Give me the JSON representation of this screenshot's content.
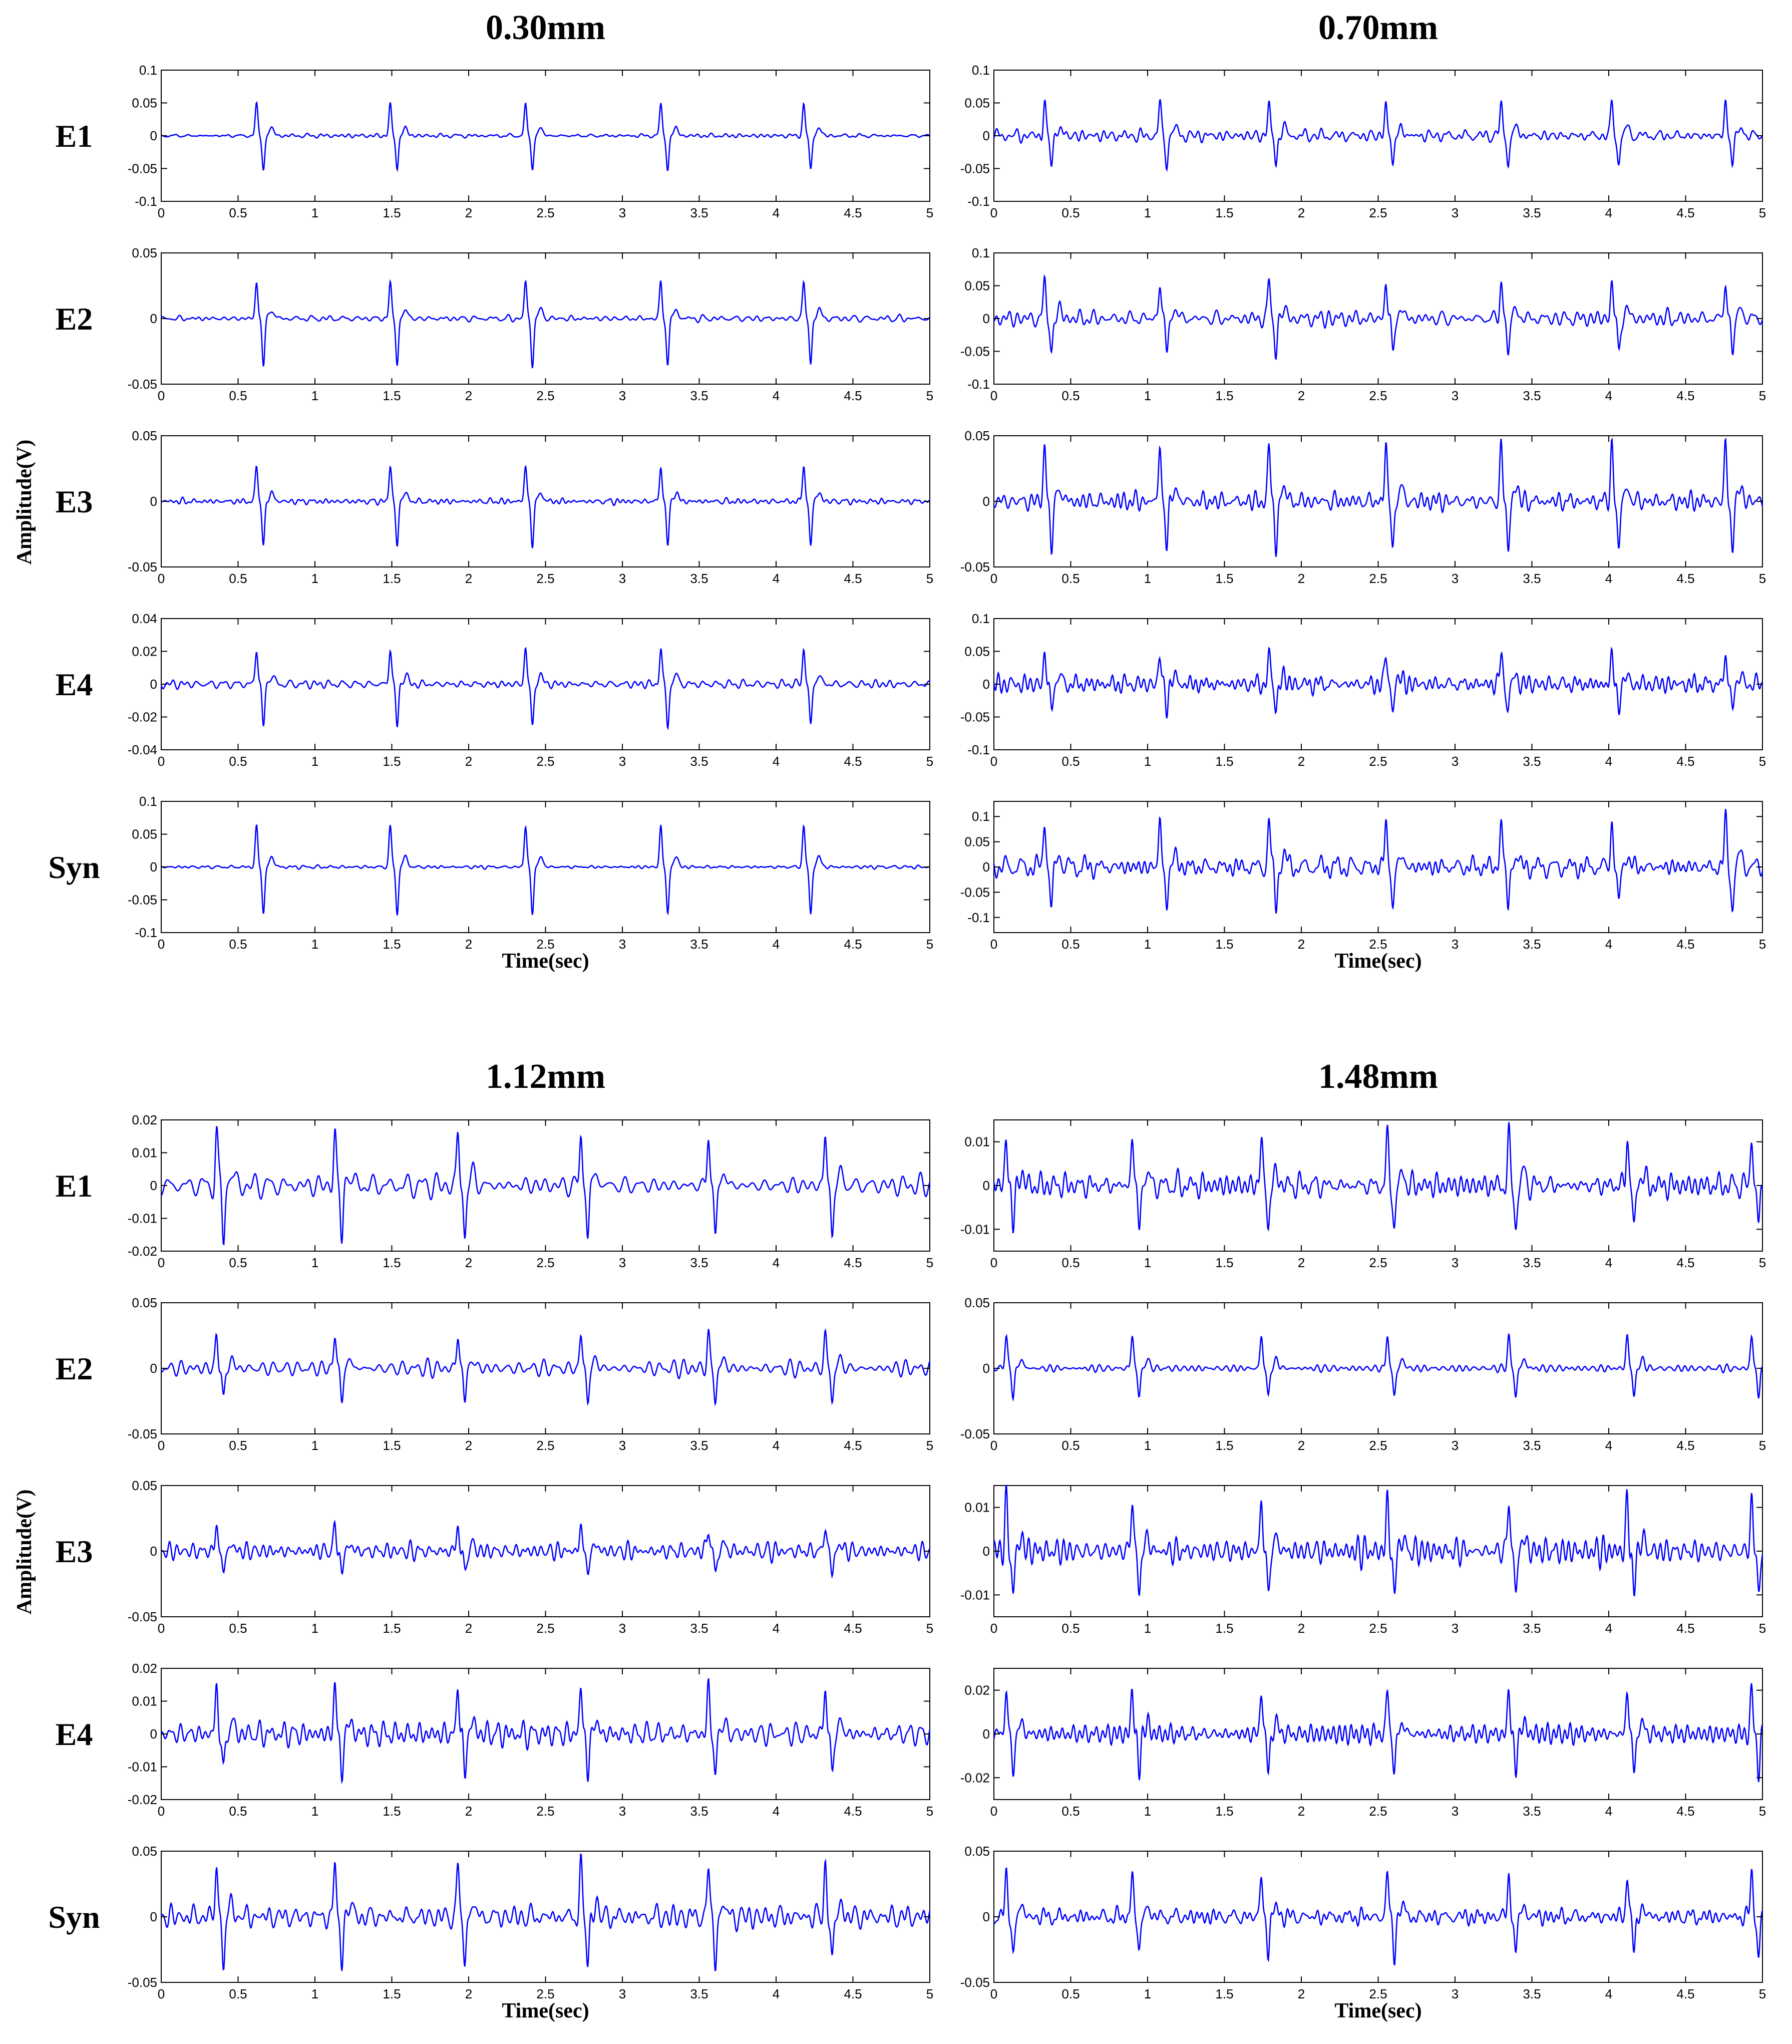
{
  "figure": {
    "y_axis_label": "Amplitude(V)",
    "x_axis_label": "Time(sec)",
    "row_labels": [
      "E1",
      "E2",
      "E3",
      "E4",
      "Syn"
    ],
    "trace_color": "#0000ff",
    "x_ticks": [
      "0",
      "0.5",
      "1",
      "1.5",
      "2",
      "2.5",
      "3",
      "3.5",
      "4",
      "4.5",
      "5"
    ]
  },
  "chart_data": [
    {
      "type": "line",
      "title": "0.30mm",
      "xlabel": "Time(sec)",
      "ylabel": "Amplitude(V)",
      "xlim": [
        0,
        5
      ],
      "grid": false,
      "rows": [
        {
          "name": "E1",
          "ylim": [
            -0.1,
            0.1
          ],
          "yticks": [
            "-0.1",
            "-0.05",
            "0",
            "0.05",
            "0.1"
          ],
          "peak": 0.048,
          "trough": -0.052,
          "spike_times": [
            0.62,
            1.49,
            2.37,
            3.25,
            4.18
          ],
          "noise": 0.003
        },
        {
          "name": "E2",
          "ylim": [
            -0.05,
            0.05
          ],
          "yticks": [
            "-0.05",
            "0",
            "0.05"
          ],
          "peak": 0.028,
          "trough": -0.036,
          "spike_times": [
            0.62,
            1.49,
            2.37,
            3.25,
            4.18
          ],
          "noise": 0.0025
        },
        {
          "name": "E3",
          "ylim": [
            -0.05,
            0.05
          ],
          "yticks": [
            "-0.05",
            "0",
            "0.05"
          ],
          "peak": 0.027,
          "trough": -0.034,
          "spike_times": [
            0.62,
            1.49,
            2.37,
            3.25,
            4.18
          ],
          "noise": 0.0025
        },
        {
          "name": "E4",
          "ylim": [
            -0.04,
            0.04
          ],
          "yticks": [
            "-0.04",
            "-0.02",
            "0",
            "0.02",
            "0.04"
          ],
          "peak": 0.022,
          "trough": -0.026,
          "spike_times": [
            0.62,
            1.49,
            2.37,
            3.25,
            4.18
          ],
          "noise": 0.002
        },
        {
          "name": "Syn",
          "ylim": [
            -0.1,
            0.1
          ],
          "yticks": [
            "-0.1",
            "-0.05",
            "0",
            "0.05",
            "0.1"
          ],
          "peak": 0.063,
          "trough": -0.072,
          "spike_times": [
            0.62,
            1.49,
            2.37,
            3.25,
            4.18
          ],
          "noise": 0.003
        }
      ]
    },
    {
      "type": "line",
      "title": "0.70mm",
      "xlabel": "Time(sec)",
      "ylabel": "",
      "xlim": [
        0,
        5
      ],
      "grid": false,
      "rows": [
        {
          "name": "E1",
          "ylim": [
            -0.1,
            0.1
          ],
          "yticks": [
            "-0.1",
            "-0.05",
            "0",
            "0.05",
            "0.1"
          ],
          "peak": 0.05,
          "trough": -0.045,
          "spike_times": [
            0.33,
            1.08,
            1.79,
            2.55,
            3.3,
            4.02,
            4.76
          ],
          "noise": 0.01
        },
        {
          "name": "E2",
          "ylim": [
            -0.1,
            0.1
          ],
          "yticks": [
            "-0.1",
            "-0.05",
            "0",
            "0.05",
            "0.1"
          ],
          "peak": 0.058,
          "trough": -0.055,
          "spike_times": [
            0.33,
            1.08,
            1.79,
            2.55,
            3.3,
            4.02,
            4.76
          ],
          "noise": 0.012
        },
        {
          "name": "E3",
          "ylim": [
            -0.05,
            0.05
          ],
          "yticks": [
            "-0.05",
            "0",
            "0.05"
          ],
          "peak": 0.043,
          "trough": -0.038,
          "spike_times": [
            0.33,
            1.08,
            1.79,
            2.55,
            3.3,
            4.02,
            4.76
          ],
          "noise": 0.01
        },
        {
          "name": "E4",
          "ylim": [
            -0.1,
            0.1
          ],
          "yticks": [
            "-0.1",
            "-0.05",
            "0",
            "0.05",
            "0.1"
          ],
          "peak": 0.045,
          "trough": -0.038,
          "spike_times": [
            0.33,
            1.08,
            1.79,
            2.55,
            3.3,
            4.02,
            4.76
          ],
          "noise": 0.013
        },
        {
          "name": "Syn",
          "ylim": [
            -0.13,
            0.13
          ],
          "yticks": [
            "-0.1",
            "-0.05",
            "0",
            "0.05",
            "0.1"
          ],
          "peak": 0.095,
          "trough": -0.085,
          "spike_times": [
            0.33,
            1.08,
            1.79,
            2.55,
            3.3,
            4.02,
            4.76
          ],
          "noise": 0.022
        }
      ]
    },
    {
      "type": "line",
      "title": "1.12mm",
      "xlabel": "Time(sec)",
      "ylabel": "Amplitude(V)",
      "xlim": [
        0,
        5
      ],
      "grid": false,
      "rows": [
        {
          "name": "E1",
          "ylim": [
            -0.02,
            0.02
          ],
          "yticks": [
            "-0.02",
            "-0.01",
            "0",
            "0.01",
            "0.02"
          ],
          "peak": 0.016,
          "trough": -0.016,
          "spike_times": [
            0.36,
            1.13,
            1.93,
            2.73,
            3.56,
            4.32
          ],
          "noise": 0.004
        },
        {
          "name": "E2",
          "ylim": [
            -0.05,
            0.05
          ],
          "yticks": [
            "-0.05",
            "0",
            "0.05"
          ],
          "peak": 0.026,
          "trough": -0.025,
          "spike_times": [
            0.36,
            1.13,
            1.93,
            2.73,
            3.56,
            4.32
          ],
          "noise": 0.006
        },
        {
          "name": "E3",
          "ylim": [
            -0.05,
            0.05
          ],
          "yticks": [
            "-0.05",
            "0",
            "0.05"
          ],
          "peak": 0.02,
          "trough": -0.018,
          "spike_times": [
            0.36,
            1.13,
            1.93,
            2.73,
            3.56,
            4.32
          ],
          "noise": 0.007
        },
        {
          "name": "E4",
          "ylim": [
            -0.02,
            0.02
          ],
          "yticks": [
            "-0.02",
            "-0.01",
            "0",
            "0.01",
            "0.02"
          ],
          "peak": 0.015,
          "trough": -0.013,
          "spike_times": [
            0.36,
            1.13,
            1.93,
            2.73,
            3.56,
            4.32
          ],
          "noise": 0.004
        },
        {
          "name": "Syn",
          "ylim": [
            -0.05,
            0.05
          ],
          "yticks": [
            "-0.05",
            "0",
            "0.05"
          ],
          "peak": 0.04,
          "trough": -0.038,
          "spike_times": [
            0.36,
            1.13,
            1.93,
            2.73,
            3.56,
            4.32
          ],
          "noise": 0.009
        }
      ]
    },
    {
      "type": "line",
      "title": "1.48mm",
      "xlabel": "Time(sec)",
      "ylabel": "",
      "xlim": [
        0,
        5
      ],
      "grid": false,
      "rows": [
        {
          "name": "E1",
          "ylim": [
            -0.015,
            0.015
          ],
          "yticks": [
            "-0.01",
            "0",
            "0.01"
          ],
          "peak": 0.011,
          "trough": -0.01,
          "spike_times": [
            0.08,
            0.9,
            1.74,
            2.56,
            3.35,
            4.12,
            4.93
          ],
          "noise": 0.003
        },
        {
          "name": "E2",
          "ylim": [
            -0.05,
            0.05
          ],
          "yticks": [
            "-0.05",
            "0",
            "0.05"
          ],
          "peak": 0.025,
          "trough": -0.022,
          "spike_times": [
            0.08,
            0.9,
            1.74,
            2.56,
            3.35,
            4.12,
            4.93
          ],
          "noise": 0.004
        },
        {
          "name": "E3",
          "ylim": [
            -0.015,
            0.015
          ],
          "yticks": [
            "-0.01",
            "0",
            "0.01"
          ],
          "peak": 0.012,
          "trough": -0.01,
          "spike_times": [
            0.08,
            0.9,
            1.74,
            2.56,
            3.35,
            4.12,
            4.93
          ],
          "noise": 0.003
        },
        {
          "name": "E4",
          "ylim": [
            -0.03,
            0.03
          ],
          "yticks": [
            "-0.02",
            "0",
            "0.02"
          ],
          "peak": 0.02,
          "trough": -0.018,
          "spike_times": [
            0.08,
            0.9,
            1.74,
            2.56,
            3.35,
            4.12,
            4.93
          ],
          "noise": 0.005
        },
        {
          "name": "Syn",
          "ylim": [
            -0.05,
            0.05
          ],
          "yticks": [
            "-0.05",
            "0",
            "0.05"
          ],
          "peak": 0.033,
          "trough": -0.03,
          "spike_times": [
            0.08,
            0.9,
            1.74,
            2.56,
            3.35,
            4.12,
            4.93
          ],
          "noise": 0.006
        }
      ]
    }
  ]
}
